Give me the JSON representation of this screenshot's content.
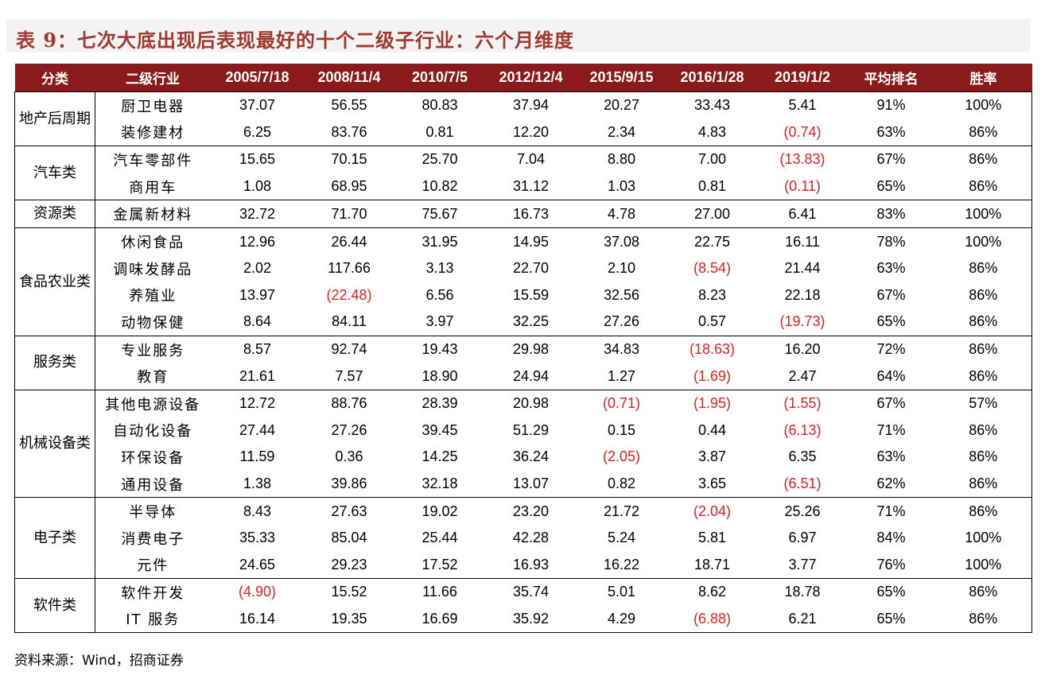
{
  "title": "表 9：七次大底出现后表现最好的十个二级子行业：六个月维度",
  "headers": [
    "分类",
    "二级行业",
    "2005/7/18",
    "2008/11/4",
    "2010/7/5",
    "2012/12/4",
    "2015/9/15",
    "2016/1/28",
    "2019/1/2",
    "平均排名",
    "胜率"
  ],
  "groups": [
    {
      "category": "地产后周期",
      "rows": [
        {
          "name": "厨卫电器",
          "values": [
            "37.07",
            "56.55",
            "80.83",
            "37.94",
            "20.27",
            "33.43",
            "5.41"
          ],
          "rank": "91%",
          "win": "100%"
        },
        {
          "name": "装修建材",
          "values": [
            "6.25",
            "83.76",
            "0.81",
            "12.20",
            "2.34",
            "4.83",
            "(0.74)"
          ],
          "rank": "63%",
          "win": "86%"
        }
      ]
    },
    {
      "category": "汽车类",
      "rows": [
        {
          "name": "汽车零部件",
          "values": [
            "15.65",
            "70.15",
            "25.70",
            "7.04",
            "8.80",
            "7.00",
            "(13.83)"
          ],
          "rank": "67%",
          "win": "86%"
        },
        {
          "name": "商用车",
          "values": [
            "1.08",
            "68.95",
            "10.82",
            "31.12",
            "1.03",
            "0.81",
            "(0.11)"
          ],
          "rank": "65%",
          "win": "86%"
        }
      ]
    },
    {
      "category": "资源类",
      "rows": [
        {
          "name": "金属新材料",
          "values": [
            "32.72",
            "71.70",
            "75.67",
            "16.73",
            "4.78",
            "27.00",
            "6.41"
          ],
          "rank": "83%",
          "win": "100%"
        }
      ]
    },
    {
      "category": "食品农业类",
      "rows": [
        {
          "name": "休闲食品",
          "values": [
            "12.96",
            "26.44",
            "31.95",
            "14.95",
            "37.08",
            "22.75",
            "16.11"
          ],
          "rank": "78%",
          "win": "100%"
        },
        {
          "name": "调味发酵品",
          "values": [
            "2.02",
            "117.66",
            "3.13",
            "22.70",
            "2.10",
            "(8.54)",
            "21.44"
          ],
          "rank": "63%",
          "win": "86%"
        },
        {
          "name": "养殖业",
          "values": [
            "13.97",
            "(22.48)",
            "6.56",
            "15.59",
            "32.56",
            "8.23",
            "22.18"
          ],
          "rank": "67%",
          "win": "86%"
        },
        {
          "name": "动物保健",
          "values": [
            "8.64",
            "84.11",
            "3.97",
            "32.25",
            "27.26",
            "0.57",
            "(19.73)"
          ],
          "rank": "65%",
          "win": "86%"
        }
      ]
    },
    {
      "category": "服务类",
      "rows": [
        {
          "name": "专业服务",
          "values": [
            "8.57",
            "92.74",
            "19.43",
            "29.98",
            "34.83",
            "(18.63)",
            "16.20"
          ],
          "rank": "72%",
          "win": "86%"
        },
        {
          "name": "教育",
          "values": [
            "21.61",
            "7.57",
            "18.90",
            "24.94",
            "1.27",
            "(1.69)",
            "2.47"
          ],
          "rank": "64%",
          "win": "86%"
        }
      ]
    },
    {
      "category": "机械设备类",
      "rows": [
        {
          "name": "其他电源设备",
          "values": [
            "12.72",
            "88.76",
            "28.39",
            "20.98",
            "(0.71)",
            "(1.95)",
            "(1.55)"
          ],
          "rank": "67%",
          "win": "57%"
        },
        {
          "name": "自动化设备",
          "values": [
            "27.44",
            "27.26",
            "39.45",
            "51.29",
            "0.15",
            "0.44",
            "(6.13)"
          ],
          "rank": "71%",
          "win": "86%"
        },
        {
          "name": "环保设备",
          "values": [
            "11.59",
            "0.36",
            "14.25",
            "36.24",
            "(2.05)",
            "3.87",
            "6.35"
          ],
          "rank": "63%",
          "win": "86%"
        },
        {
          "name": "通用设备",
          "values": [
            "1.38",
            "39.86",
            "32.18",
            "13.07",
            "0.82",
            "3.65",
            "(6.51)"
          ],
          "rank": "62%",
          "win": "86%"
        }
      ]
    },
    {
      "category": "电子类",
      "rows": [
        {
          "name": "半导体",
          "values": [
            "8.43",
            "27.63",
            "19.02",
            "23.20",
            "21.72",
            "(2.04)",
            "25.26"
          ],
          "rank": "71%",
          "win": "86%"
        },
        {
          "name": "消费电子",
          "values": [
            "35.33",
            "85.04",
            "25.44",
            "42.28",
            "5.24",
            "5.81",
            "6.97"
          ],
          "rank": "84%",
          "win": "100%"
        },
        {
          "name": "元件",
          "values": [
            "24.65",
            "29.23",
            "17.52",
            "16.93",
            "16.22",
            "18.71",
            "3.77"
          ],
          "rank": "76%",
          "win": "100%"
        }
      ]
    },
    {
      "category": "软件类",
      "rows": [
        {
          "name": "软件开发",
          "values": [
            "(4.90)",
            "15.52",
            "11.66",
            "35.74",
            "5.01",
            "8.62",
            "18.78"
          ],
          "rank": "65%",
          "win": "86%"
        },
        {
          "name": "IT 服务",
          "values": [
            "16.14",
            "19.35",
            "16.69",
            "35.92",
            "4.29",
            "(6.88)",
            "6.21"
          ],
          "rank": "65%",
          "win": "86%"
        }
      ]
    }
  ],
  "source": "资料来源：Wind，招商证券",
  "colors": {
    "header_bg": "#8b1a1a",
    "title": "#a0382d",
    "negative": "#e02020"
  }
}
